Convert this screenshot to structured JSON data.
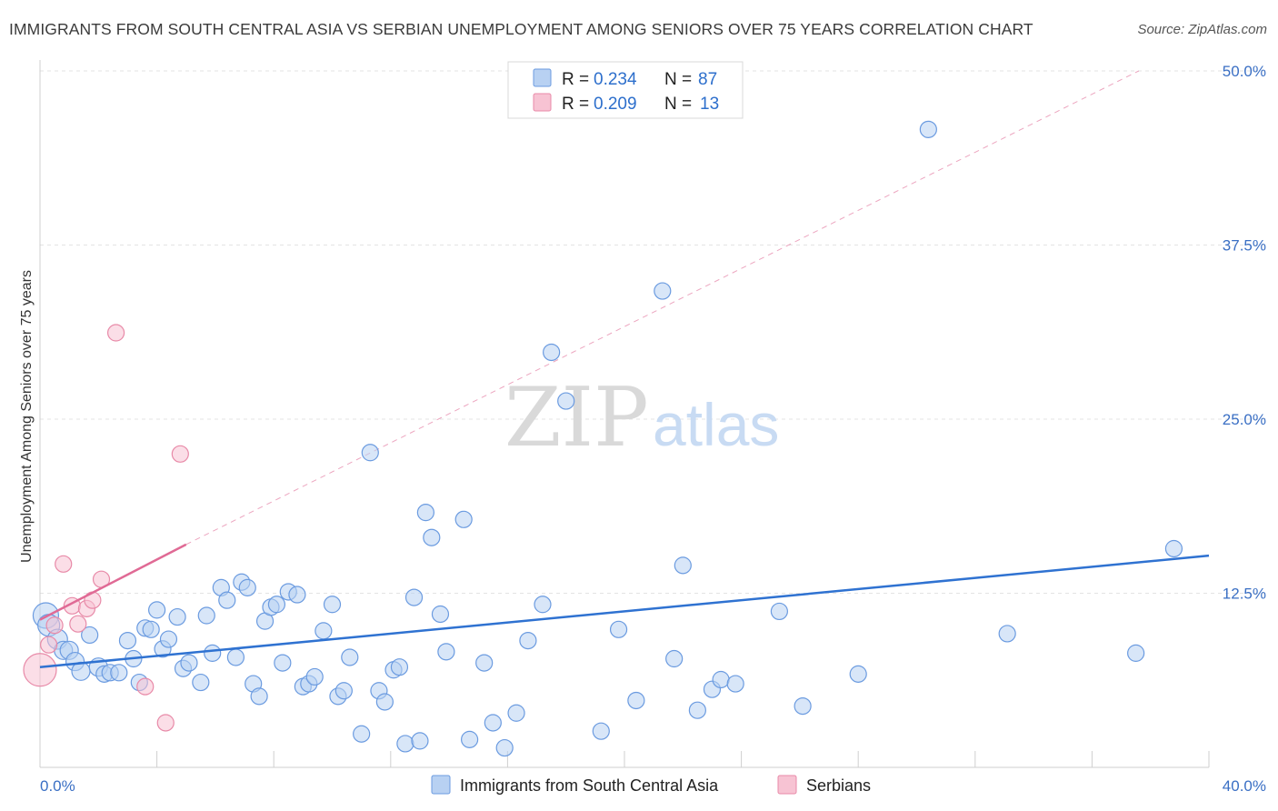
{
  "title": "IMMIGRANTS FROM SOUTH CENTRAL ASIA VS SERBIAN UNEMPLOYMENT AMONG SENIORS OVER 75 YEARS CORRELATION CHART",
  "source": "Source: ZipAtlas.com",
  "watermark": {
    "zip": "ZIP",
    "atlas": "atlas"
  },
  "colors": {
    "blue_fill": "#b8d1f2",
    "blue_stroke": "#6b9be0",
    "blue_line": "#2f72d1",
    "pink_fill": "#f7c3d3",
    "pink_stroke": "#e88aa8",
    "pink_line": "#e06a95",
    "tick_color": "#3a6fc4",
    "grid": "#e3e3e3"
  },
  "legend": {
    "rows": [
      {
        "r_label": "R =",
        "r_value": "0.234",
        "n_label": "N =",
        "n_value": "87",
        "series": "blue"
      },
      {
        "r_label": "R =",
        "r_value": "0.209",
        "n_label": "N =",
        "n_value": "13",
        "series": "pink"
      }
    ]
  },
  "chart_data": {
    "type": "scatter",
    "title": "IMMIGRANTS FROM SOUTH CENTRAL ASIA VS SERBIAN UNEMPLOYMENT AMONG SENIORS OVER 75 YEARS CORRELATION CHART",
    "xlabel": "",
    "ylabel": "Unemployment Among Seniors over 75 years",
    "xlim": [
      0,
      40
    ],
    "ylim": [
      0,
      50
    ],
    "x_ticks": [
      "0.0%",
      "40.0%"
    ],
    "y_ticks": [
      {
        "value": 12.5,
        "label": "12.5%"
      },
      {
        "value": 25,
        "label": "25.0%"
      },
      {
        "value": 37.5,
        "label": "37.5%"
      },
      {
        "value": 50,
        "label": "50.0%"
      }
    ],
    "grid": true,
    "legend_position": "top-center",
    "series": [
      {
        "name": "Immigrants from South Central Asia",
        "color": "#6b9be0",
        "r": 0.234,
        "n": 87,
        "trend": {
          "x": [
            0,
            40
          ],
          "y": [
            7.2,
            15.2
          ],
          "style": "solid"
        },
        "points": [
          [
            0.2,
            10.9,
            14
          ],
          [
            0.3,
            10.2,
            12
          ],
          [
            0.6,
            9.2,
            11
          ],
          [
            0.8,
            8.4,
            10
          ],
          [
            1.0,
            8.4,
            10
          ],
          [
            1.2,
            7.6,
            10
          ],
          [
            1.4,
            6.9,
            10
          ],
          [
            1.7,
            9.5,
            9
          ],
          [
            2.0,
            7.2,
            10
          ],
          [
            2.2,
            6.7,
            9
          ],
          [
            2.4,
            6.8,
            9
          ],
          [
            2.7,
            6.8,
            9
          ],
          [
            3.0,
            9.1,
            9
          ],
          [
            3.2,
            7.8,
            9
          ],
          [
            3.4,
            6.1,
            9
          ],
          [
            3.6,
            10.0,
            9
          ],
          [
            3.8,
            9.9,
            9
          ],
          [
            4.0,
            11.3,
            9
          ],
          [
            4.2,
            8.5,
            9
          ],
          [
            4.4,
            9.2,
            9
          ],
          [
            4.7,
            10.8,
            9
          ],
          [
            4.9,
            7.1,
            9
          ],
          [
            5.1,
            7.5,
            9
          ],
          [
            5.5,
            6.1,
            9
          ],
          [
            5.7,
            10.9,
            9
          ],
          [
            5.9,
            8.2,
            9
          ],
          [
            6.2,
            12.9,
            9
          ],
          [
            6.4,
            12.0,
            9
          ],
          [
            6.7,
            7.9,
            9
          ],
          [
            6.9,
            13.3,
            9
          ],
          [
            7.1,
            12.9,
            9
          ],
          [
            7.3,
            6.0,
            9
          ],
          [
            7.5,
            5.1,
            9
          ],
          [
            7.7,
            10.5,
            9
          ],
          [
            7.9,
            11.5,
            9
          ],
          [
            8.1,
            11.7,
            9
          ],
          [
            8.3,
            7.5,
            9
          ],
          [
            8.5,
            12.6,
            9
          ],
          [
            8.8,
            12.4,
            9
          ],
          [
            9.0,
            5.8,
            9
          ],
          [
            9.2,
            6.0,
            9
          ],
          [
            9.4,
            6.5,
            9
          ],
          [
            9.7,
            9.8,
            9
          ],
          [
            10.0,
            11.7,
            9
          ],
          [
            10.2,
            5.1,
            9
          ],
          [
            10.4,
            5.5,
            9
          ],
          [
            10.6,
            7.9,
            9
          ],
          [
            11.0,
            2.4,
            9
          ],
          [
            11.3,
            22.6,
            9
          ],
          [
            11.6,
            5.5,
            9
          ],
          [
            11.8,
            4.7,
            9
          ],
          [
            12.1,
            7.0,
            9
          ],
          [
            12.3,
            7.2,
            9
          ],
          [
            12.5,
            1.7,
            9
          ],
          [
            12.8,
            12.2,
            9
          ],
          [
            13.0,
            1.9,
            9
          ],
          [
            13.2,
            18.3,
            9
          ],
          [
            13.4,
            16.5,
            9
          ],
          [
            13.7,
            11.0,
            9
          ],
          [
            13.9,
            8.3,
            9
          ],
          [
            14.5,
            17.8,
            9
          ],
          [
            14.7,
            2.0,
            9
          ],
          [
            15.2,
            7.5,
            9
          ],
          [
            15.5,
            3.2,
            9
          ],
          [
            15.9,
            1.4,
            9
          ],
          [
            16.3,
            3.9,
            9
          ],
          [
            16.7,
            9.1,
            9
          ],
          [
            17.2,
            11.7,
            9
          ],
          [
            17.5,
            29.8,
            9
          ],
          [
            18.0,
            26.3,
            9
          ],
          [
            19.2,
            2.6,
            9
          ],
          [
            19.8,
            9.9,
            9
          ],
          [
            20.4,
            4.8,
            9
          ],
          [
            21.3,
            34.2,
            9
          ],
          [
            21.7,
            7.8,
            9
          ],
          [
            22.0,
            14.5,
            9
          ],
          [
            22.5,
            4.1,
            9
          ],
          [
            23.0,
            5.6,
            9
          ],
          [
            23.3,
            6.3,
            9
          ],
          [
            23.8,
            6.0,
            9
          ],
          [
            25.3,
            11.2,
            9
          ],
          [
            26.1,
            4.4,
            9
          ],
          [
            28.0,
            6.7,
            9
          ],
          [
            30.4,
            45.8,
            9
          ],
          [
            33.1,
            9.6,
            9
          ],
          [
            37.5,
            8.2,
            9
          ],
          [
            38.8,
            15.7,
            9
          ]
        ]
      },
      {
        "name": "Serbians",
        "color": "#e88aa8",
        "r": 0.209,
        "n": 13,
        "trend": {
          "x": [
            0,
            5.0
          ],
          "y": [
            10.6,
            16.0
          ],
          "style": "solid",
          "extension": {
            "x": [
              5.0,
              37.6
            ],
            "y": [
              16.0,
              50.0
            ],
            "style": "dashed"
          }
        },
        "points": [
          [
            0.0,
            7.0,
            18
          ],
          [
            0.3,
            8.8,
            9
          ],
          [
            0.5,
            10.2,
            9
          ],
          [
            0.8,
            14.6,
            9
          ],
          [
            1.1,
            11.6,
            9
          ],
          [
            1.3,
            10.3,
            9
          ],
          [
            1.6,
            11.4,
            9
          ],
          [
            1.8,
            12.0,
            9
          ],
          [
            2.1,
            13.5,
            9
          ],
          [
            2.6,
            31.2,
            9
          ],
          [
            3.6,
            5.8,
            9
          ],
          [
            4.3,
            3.2,
            9
          ],
          [
            4.8,
            22.5,
            9
          ]
        ]
      }
    ]
  },
  "bottom_legend": {
    "items": [
      {
        "label": "Immigrants from South Central Asia",
        "series": "blue"
      },
      {
        "label": "Serbians",
        "series": "pink"
      }
    ]
  }
}
